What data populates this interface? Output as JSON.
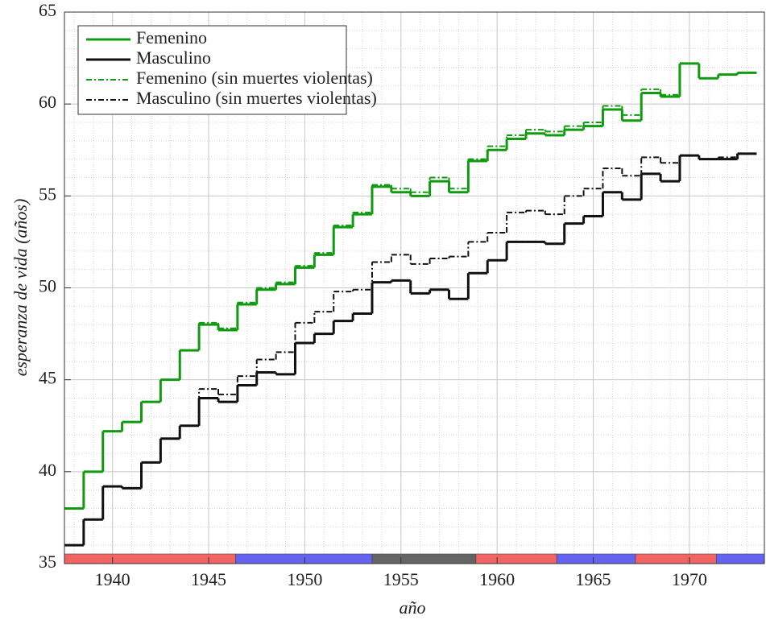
{
  "chart_data": {
    "type": "step",
    "xlabel": "año",
    "ylabel": "esperanza de vida (años)",
    "x": [
      1938,
      1939,
      1940,
      1941,
      1942,
      1943,
      1944,
      1945,
      1946,
      1947,
      1948,
      1949,
      1950,
      1951,
      1952,
      1953,
      1954,
      1955,
      1956,
      1957,
      1958,
      1959,
      1960,
      1961,
      1962,
      1963,
      1964,
      1965,
      1966,
      1967,
      1968,
      1969,
      1970,
      1971,
      1972,
      1973
    ],
    "series": [
      {
        "name": "Femenino",
        "color": "#109a10",
        "dash": "solid",
        "values": [
          38.0,
          40.0,
          42.2,
          42.7,
          43.8,
          45.0,
          46.6,
          48.0,
          47.7,
          49.1,
          49.9,
          50.2,
          51.1,
          51.8,
          53.3,
          54.0,
          55.5,
          55.2,
          55.0,
          55.8,
          55.2,
          56.9,
          57.5,
          58.1,
          58.4,
          58.3,
          58.6,
          58.8,
          59.7,
          59.1,
          60.6,
          60.4,
          62.2,
          61.4,
          61.6,
          61.7
        ]
      },
      {
        "name": "Masculino",
        "color": "#111111",
        "dash": "solid",
        "values": [
          36.0,
          37.4,
          39.2,
          39.1,
          40.5,
          41.8,
          42.5,
          44.0,
          43.8,
          44.7,
          45.4,
          45.3,
          47.0,
          47.5,
          48.2,
          48.6,
          50.3,
          50.4,
          49.7,
          49.9,
          49.4,
          50.8,
          51.5,
          52.5,
          52.5,
          52.4,
          53.5,
          53.9,
          55.2,
          54.8,
          56.2,
          55.8,
          57.2,
          57.0,
          57.0,
          57.3
        ]
      },
      {
        "name": "Femenino (sin muertes violentas)",
        "color": "#109a10",
        "dash": "dashdot",
        "values": [
          38.0,
          40.0,
          42.2,
          42.7,
          43.8,
          45.0,
          46.6,
          48.1,
          47.8,
          49.2,
          50.0,
          50.3,
          51.2,
          51.9,
          53.4,
          54.1,
          55.6,
          55.4,
          55.2,
          56.0,
          55.4,
          57.0,
          57.7,
          58.3,
          58.6,
          58.5,
          58.8,
          59.0,
          59.9,
          59.4,
          60.8,
          60.5,
          62.2,
          61.4,
          61.6,
          61.7
        ]
      },
      {
        "name": "Masculino (sin muertes violentas)",
        "color": "#111111",
        "dash": "dashdot",
        "values": [
          36.0,
          37.4,
          39.2,
          39.1,
          40.5,
          41.8,
          42.5,
          44.5,
          44.2,
          45.2,
          46.1,
          46.5,
          48.1,
          48.7,
          49.8,
          49.9,
          51.4,
          51.8,
          51.3,
          51.6,
          51.7,
          52.5,
          53.0,
          54.1,
          54.2,
          54.0,
          55.0,
          55.4,
          56.5,
          56.1,
          57.1,
          56.8,
          57.2,
          57.0,
          57.1,
          57.3
        ]
      }
    ],
    "periods": [
      {
        "start": 1937.5,
        "end": 1946.4,
        "color": "#f06464"
      },
      {
        "start": 1946.4,
        "end": 1953.5,
        "color": "#6464f0"
      },
      {
        "start": 1953.5,
        "end": 1958.9,
        "color": "#646464"
      },
      {
        "start": 1958.9,
        "end": 1963.1,
        "color": "#f06464"
      },
      {
        "start": 1963.1,
        "end": 1967.2,
        "color": "#6464f0"
      },
      {
        "start": 1967.2,
        "end": 1971.4,
        "color": "#f06464"
      },
      {
        "start": 1971.4,
        "end": 1973.9,
        "color": "#6464f0"
      }
    ],
    "xlim": [
      1937.5,
      1973.9
    ],
    "xticks": [
      1940,
      1945,
      1950,
      1955,
      1960,
      1965,
      1970
    ],
    "ylim": [
      35,
      65
    ],
    "yticks": [
      35,
      40,
      45,
      50,
      55,
      60,
      65
    ],
    "grid": true,
    "minor_grid": true,
    "legend": "upper left"
  }
}
